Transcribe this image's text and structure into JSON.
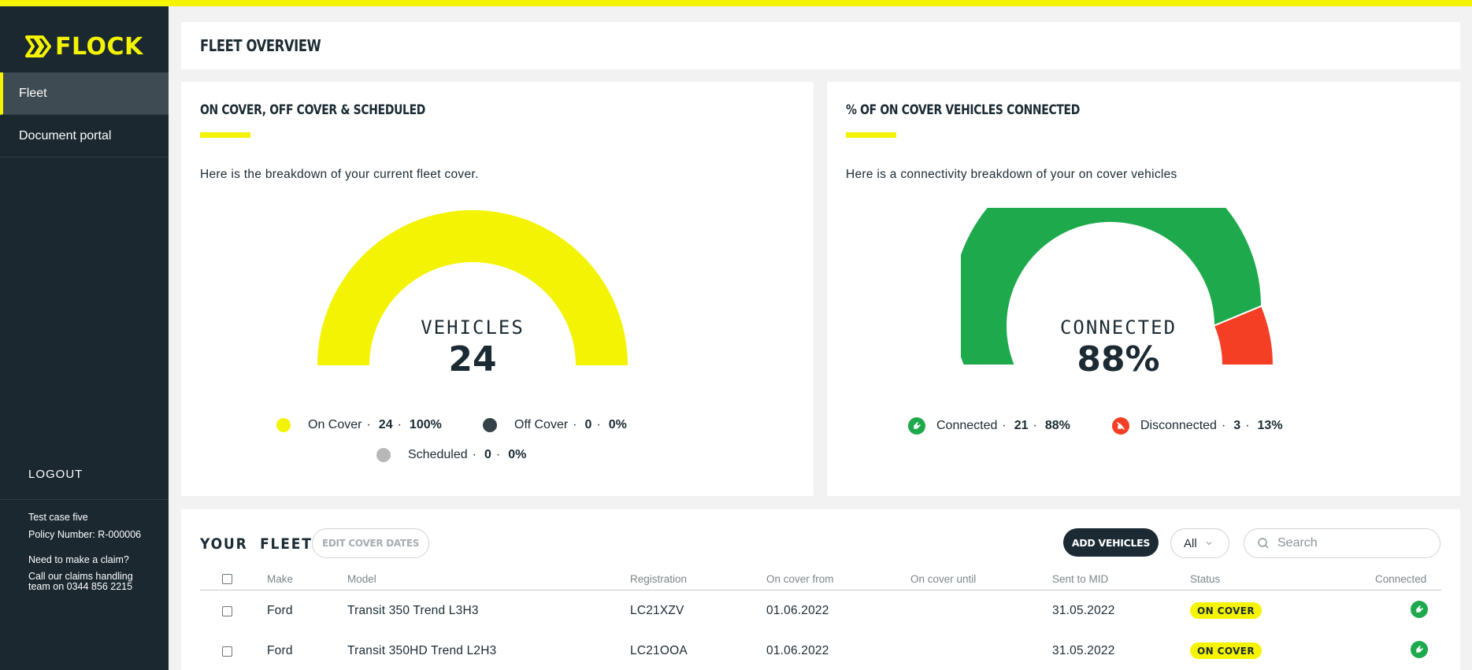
{
  "brand": {
    "name": "FLOCK",
    "accent": "#f4f303",
    "dark": "#1b2830"
  },
  "sidebar": {
    "items": [
      {
        "label": "Fleet",
        "active": true
      },
      {
        "label": "Document portal",
        "active": false
      }
    ],
    "logout": "LOGOUT",
    "info": {
      "name": "Test case five",
      "policy": "Policy Number: R-000006",
      "claim_question": "Need to make a claim?",
      "claim_call": "Call our claims handling team on 0344 856 2215"
    }
  },
  "header": {
    "title": "FLEET OVERVIEW"
  },
  "cover_panel": {
    "title": "ON COVER, OFF COVER & SCHEDULED",
    "description": "Here is the breakdown of your current fleet cover.",
    "gauge_label": "VEHICLES",
    "gauge_value": "24",
    "legend": [
      {
        "label": "On Cover",
        "count": "24",
        "percent": "100%",
        "color": "#f4f303",
        "fraction": 1.0
      },
      {
        "label": "Off Cover",
        "count": "0",
        "percent": "0%",
        "color": "#354349",
        "fraction": 0.0
      },
      {
        "label": "Scheduled",
        "count": "0",
        "percent": "0%",
        "color": "#b8b8b8",
        "fraction": 0.0
      }
    ]
  },
  "connect_panel": {
    "title": "% OF ON COVER VEHICLES CONNECTED",
    "description": "Here is a connectivity breakdown of your on cover vehicles",
    "gauge_label": "CONNECTED",
    "gauge_value": "88%",
    "legend": [
      {
        "label": "Connected",
        "count": "21",
        "percent": "88%",
        "color": "#1ea94c",
        "icon": "plug-connected-icon",
        "fraction": 0.875
      },
      {
        "label": "Disconnected",
        "count": "3",
        "percent": "13%",
        "color": "#f43f24",
        "icon": "plug-disconnected-icon",
        "fraction": 0.125
      }
    ]
  },
  "fleet": {
    "title": "YOUR  FLEET",
    "edit_label": "EDIT COVER DATES",
    "add_label": "ADD VEHICLES",
    "filter_value": "All",
    "search_placeholder": "Search",
    "columns": {
      "make": "Make",
      "model": "Model",
      "registration": "Registration",
      "on_cover_from": "On cover from",
      "on_cover_until": "On cover until",
      "sent_to_mid": "Sent to MID",
      "status": "Status",
      "connected": "Connected"
    },
    "rows": [
      {
        "make": "Ford",
        "model": "Transit 350 Trend L3H3",
        "registration": "LC21XZV",
        "on_cover_from": "01.06.2022",
        "on_cover_until": "",
        "sent_to_mid": "31.05.2022",
        "status": "ON COVER",
        "connected": true
      },
      {
        "make": "Ford",
        "model": "Transit 350HD Trend L2H3",
        "registration": "LC21OOA",
        "on_cover_from": "01.06.2022",
        "on_cover_until": "",
        "sent_to_mid": "31.05.2022",
        "status": "ON COVER",
        "connected": true
      }
    ]
  }
}
